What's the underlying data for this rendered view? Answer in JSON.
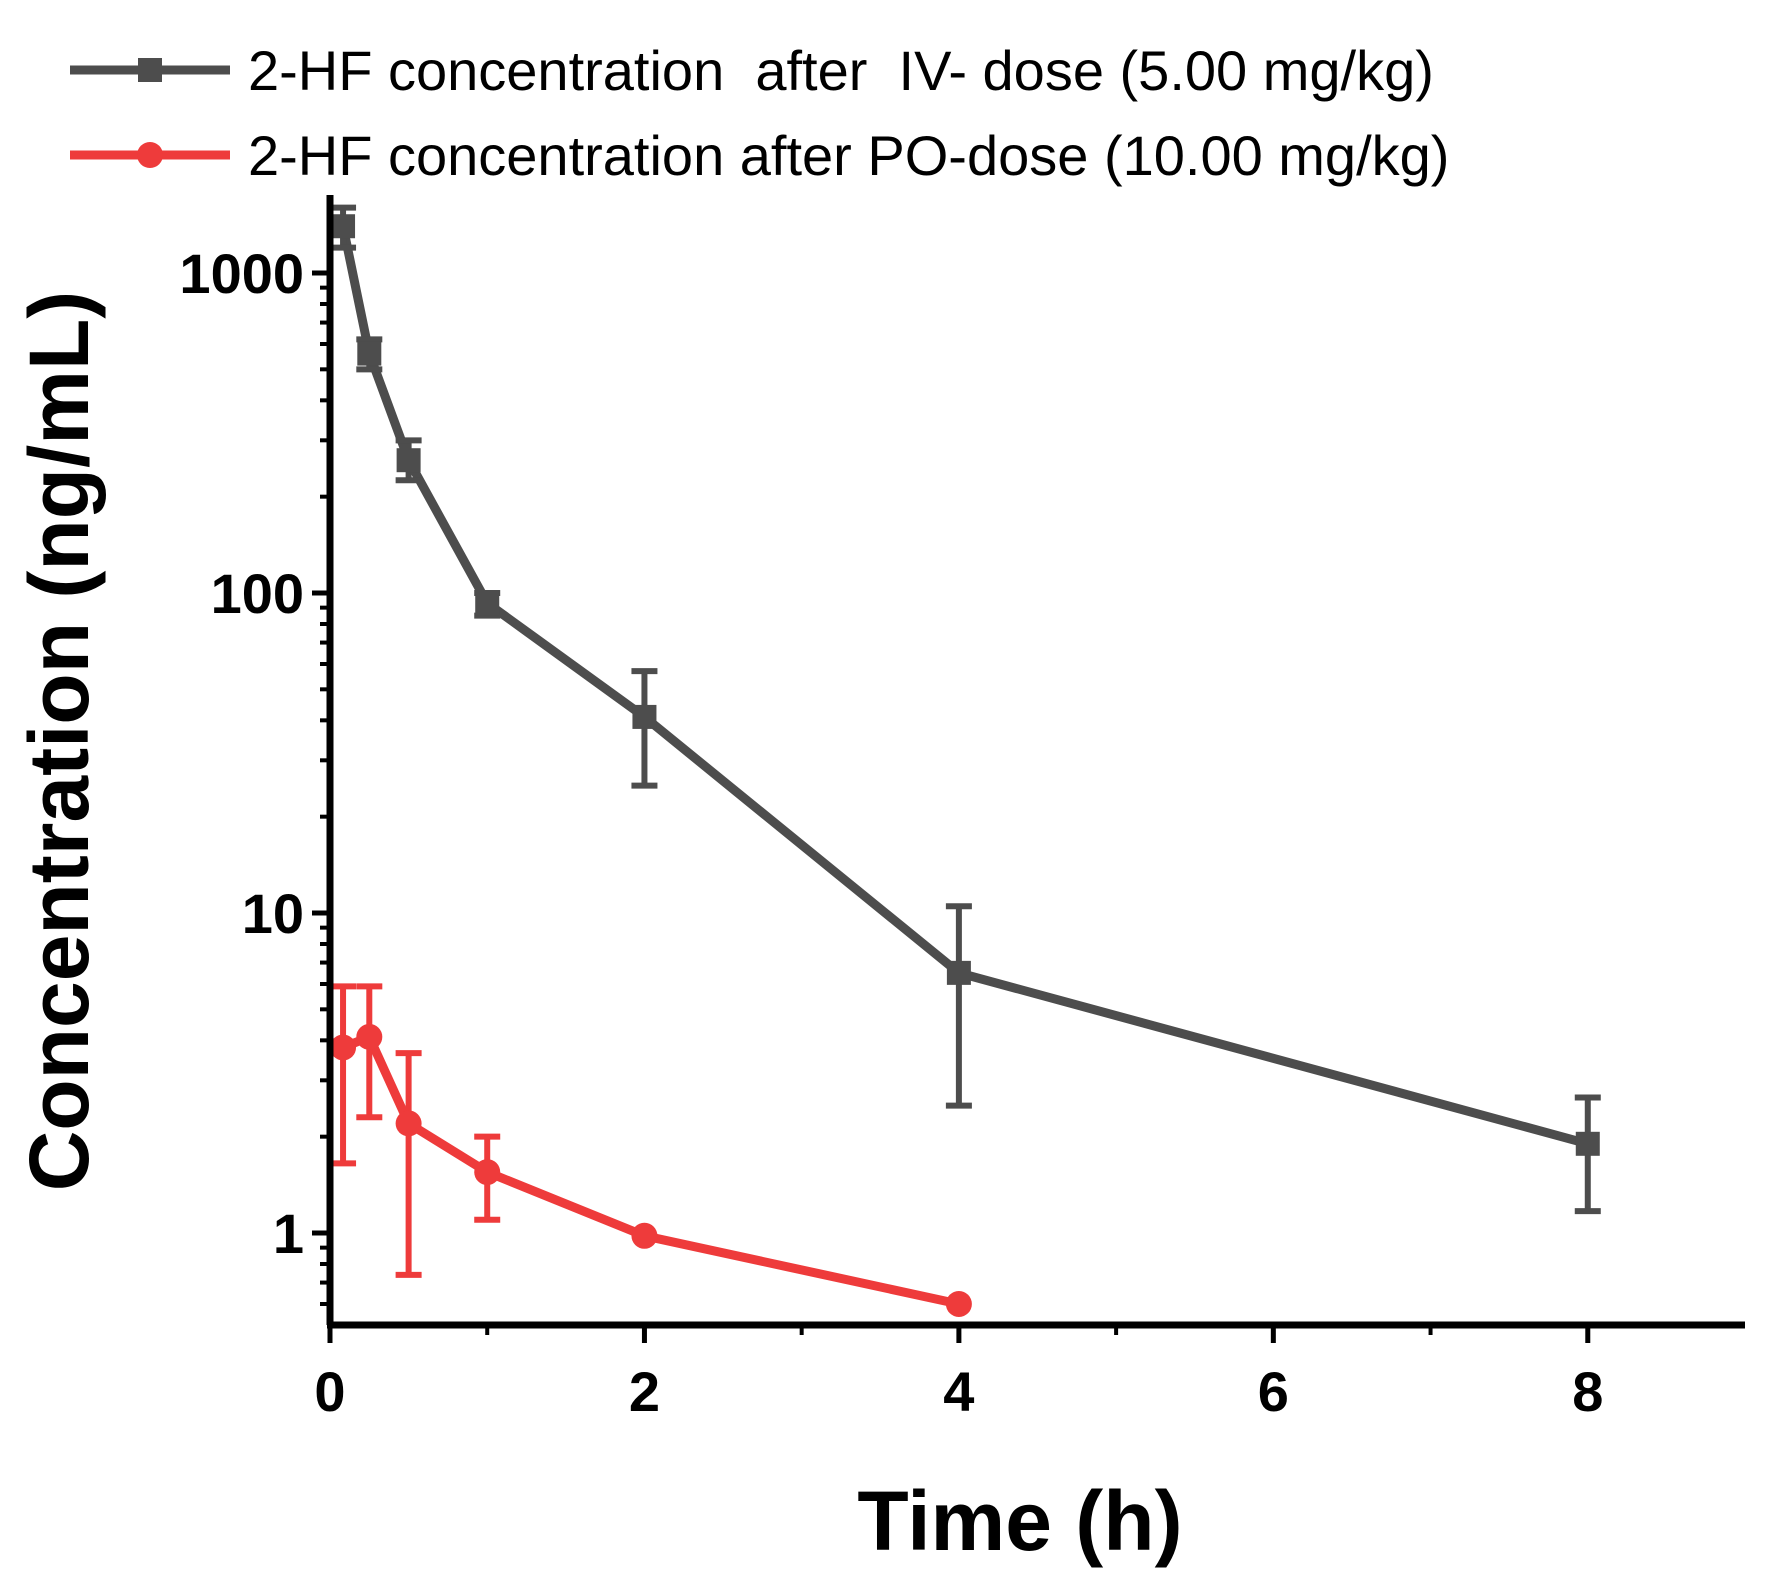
{
  "chart_data": {
    "type": "line",
    "title": "",
    "xlabel": "Time (h)",
    "ylabel": "Concentration (ng/mL)",
    "xlim": [
      0,
      9
    ],
    "ylim": [
      0.5,
      1600
    ],
    "yscale": "log",
    "xticks": [
      0,
      2,
      4,
      6,
      8
    ],
    "xtick_labels": [
      "0",
      "2",
      "4",
      "6",
      "8"
    ],
    "yticks": [
      1,
      10,
      100,
      1000
    ],
    "ytick_labels": [
      "1",
      "10",
      "100",
      "1000"
    ],
    "grid": false,
    "legend": "top",
    "series": [
      {
        "name": "2-HF concentration  after  IV- dose (5.00 mg/kg)",
        "color": "#4d4d4d",
        "marker": "square",
        "x": [
          0.083,
          0.25,
          0.5,
          1,
          2,
          4,
          8
        ],
        "y": [
          1400,
          560,
          260,
          93,
          41,
          6.5,
          1.9
        ],
        "err_low": [
          1200,
          500,
          225,
          85,
          25,
          2.5,
          1.17
        ],
        "err_high": [
          1600,
          620,
          300,
          100,
          57,
          10.5,
          2.65
        ]
      },
      {
        "name": "2-HF concentration after PO-dose (10.00 mg/kg)",
        "color": "#ee3b3b",
        "marker": "circle",
        "x": [
          0.083,
          0.25,
          0.5,
          1,
          2,
          4
        ],
        "y": [
          3.8,
          4.1,
          2.2,
          1.55,
          0.98,
          0.6
        ],
        "err_low": [
          1.65,
          2.3,
          0.74,
          1.1,
          0.98,
          0.6
        ],
        "err_high": [
          5.9,
          5.9,
          3.65,
          2.0,
          0.98,
          0.6
        ]
      }
    ]
  }
}
